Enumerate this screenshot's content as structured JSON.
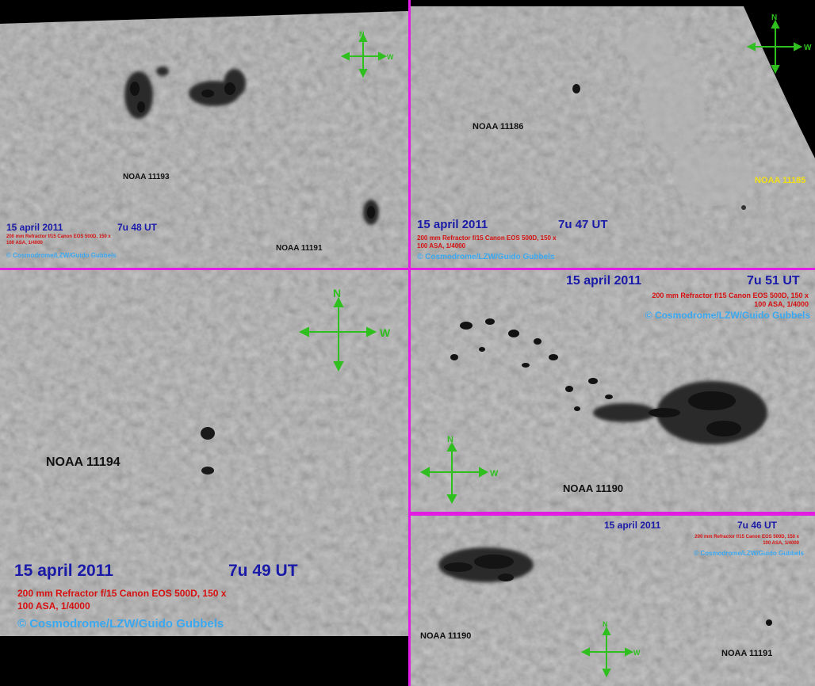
{
  "colors": {
    "divider": "#e21ce0",
    "date": "#1a1aa8",
    "equipment": "#d61010",
    "copyright": "#3aa8f0",
    "compass": "#2fbf1f",
    "yellow_label": "#f2e016"
  },
  "panels": {
    "p1": {
      "date": "15 april 2011",
      "time": "7u 48 UT",
      "equip1": "200 mm Refractor f/15  Canon EOS 500D, 150 x",
      "equip2": "100 ASA, 1/4000",
      "copyright": "© Cosmodrome/LZW/Guido Gubbels",
      "labels": [
        "NOAA 11193",
        "NOAA 11191"
      ],
      "compass": {
        "n": "N",
        "w": "W"
      }
    },
    "p2": {
      "date": "15 april 2011",
      "time": "7u 47 UT",
      "equip1": "200 mm Refractor f/15  Canon EOS 500D, 150 x",
      "equip2": "100 ASA, 1/4000",
      "copyright": "© Cosmodrome/LZW/Guido Gubbels",
      "labels": [
        "NOAA 11186",
        "NOAA 11185"
      ],
      "compass": {
        "n": "N",
        "w": "W"
      }
    },
    "p3": {
      "date": "15 april 2011",
      "time": "7u 49 UT",
      "equip1": "200 mm Refractor f/15  Canon EOS 500D, 150 x",
      "equip2": "100 ASA, 1/4000",
      "copyright": "© Cosmodrome/LZW/Guido Gubbels",
      "labels": [
        "NOAA 11194"
      ],
      "compass": {
        "n": "N",
        "w": "W"
      }
    },
    "p4": {
      "date": "15 april 2011",
      "time": "7u 51 UT",
      "equip1": "200 mm Refractor f/15  Canon EOS 500D, 150 x",
      "equip2": "100 ASA, 1/4000",
      "copyright": "© Cosmodrome/LZW/Guido Gubbels",
      "labels": [
        "NOAA 11190"
      ],
      "compass": {
        "n": "N",
        "w": "W"
      }
    },
    "p5": {
      "date": "15 april 2011",
      "time": "7u 46 UT",
      "equip1": "200 mm Refractor f/15  Canon EOS 500D, 150 x",
      "equip2": "100 ASA, 1/4000",
      "copyright": "© Cosmodrome/LZW/Guido Gubbels",
      "labels": [
        "NOAA 11190",
        "NOAA 11191"
      ],
      "compass": {
        "n": "N",
        "w": "W"
      }
    }
  }
}
